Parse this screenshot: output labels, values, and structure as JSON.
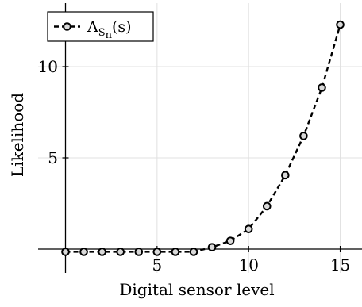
{
  "chart_data": {
    "type": "line",
    "x": [
      0,
      1,
      2,
      3,
      4,
      5,
      6,
      7,
      8,
      9,
      10,
      11,
      12,
      13,
      14,
      15
    ],
    "series": [
      {
        "name": "Λ_{S_n}(s)",
        "values": [
          -0.15,
          -0.15,
          -0.15,
          -0.15,
          -0.15,
          -0.15,
          -0.15,
          -0.15,
          0.1,
          0.45,
          1.1,
          2.35,
          4.05,
          6.2,
          8.85,
          12.3
        ]
      }
    ],
    "xlabel": "Digital sensor level",
    "ylabel": "Likelihood",
    "xticks": [
      5,
      10,
      15
    ],
    "yticks": [
      5,
      10
    ],
    "xlim": [
      -0.3,
      16.3
    ],
    "ylim": [
      -1.3,
      13.5
    ],
    "grid": true,
    "legend": {
      "position": "top-left",
      "main": "Λ",
      "sub": "S",
      "subsub": "n",
      "suffix": "(s)"
    },
    "colors": {
      "line": "#000000",
      "marker_fill": "#d9d9d9",
      "grid": "#e0e0e0"
    }
  }
}
